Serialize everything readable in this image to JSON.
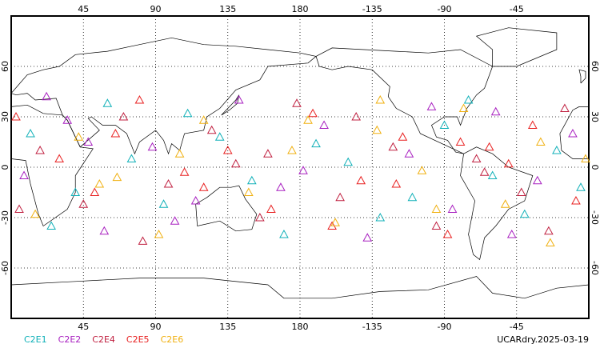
{
  "chart_data": {
    "type": "scatter",
    "xlim": [
      0,
      360
    ],
    "ylim": [
      -90,
      90
    ],
    "xticks": [
      45,
      90,
      135,
      180,
      {
        "value": 225,
        "label": "-135"
      },
      {
        "value": 270,
        "label": "-90"
      },
      {
        "value": 315,
        "label": "-45"
      }
    ],
    "yticks": [
      -60,
      -30,
      0,
      30,
      60
    ],
    "grid": true,
    "annotation": "UCARdry.2025-03-19",
    "series": [
      {
        "name": "C2E1",
        "color": "#10b0b8",
        "x": [
          12,
          40,
          75,
          110,
          150,
          190,
          230,
          270,
          300,
          340,
          25,
          60,
          95,
          130,
          170,
          210,
          250,
          285,
          320,
          355
        ],
        "y": [
          20,
          -15,
          5,
          32,
          -8,
          14,
          -30,
          25,
          -5,
          10,
          -35,
          38,
          -22,
          18,
          -40,
          3,
          -18,
          40,
          -28,
          -12
        ]
      },
      {
        "name": "C2E2",
        "color": "#a820c0",
        "x": [
          8,
          35,
          58,
          88,
          115,
          142,
          168,
          195,
          222,
          248,
          275,
          302,
          328,
          350,
          48,
          102,
          182,
          262,
          312,
          22
        ],
        "y": [
          -5,
          28,
          -38,
          12,
          -20,
          40,
          -12,
          25,
          -42,
          8,
          -25,
          33,
          -8,
          20,
          15,
          -32,
          -2,
          36,
          -40,
          42
        ]
      },
      {
        "name": "C2E4",
        "color": "#c02040",
        "x": [
          18,
          45,
          70,
          98,
          125,
          155,
          178,
          205,
          238,
          265,
          290,
          318,
          345,
          5,
          82,
          140,
          215,
          295,
          335,
          160
        ],
        "y": [
          10,
          -22,
          30,
          -10,
          22,
          -30,
          38,
          -18,
          12,
          -35,
          5,
          -15,
          35,
          -25,
          -44,
          2,
          30,
          -3,
          -38,
          8
        ]
      },
      {
        "name": "C2E5",
        "color": "#e82020",
        "x": [
          3,
          30,
          52,
          80,
          108,
          135,
          162,
          188,
          218,
          244,
          272,
          298,
          325,
          352,
          65,
          120,
          200,
          280,
          310,
          240
        ],
        "y": [
          30,
          5,
          -15,
          40,
          -3,
          10,
          -25,
          32,
          -8,
          18,
          -40,
          12,
          25,
          -20,
          20,
          -12,
          -35,
          15,
          2,
          -10
        ]
      },
      {
        "name": "C2E6",
        "color": "#f0b010",
        "x": [
          15,
          42,
          66,
          92,
          120,
          148,
          175,
          202,
          228,
          256,
          282,
          308,
          336,
          358,
          55,
          105,
          185,
          265,
          330,
          230
        ],
        "y": [
          -28,
          18,
          -6,
          -40,
          28,
          -15,
          10,
          -33,
          22,
          -2,
          35,
          -22,
          -45,
          5,
          -10,
          8,
          28,
          -25,
          15,
          40
        ]
      }
    ]
  }
}
